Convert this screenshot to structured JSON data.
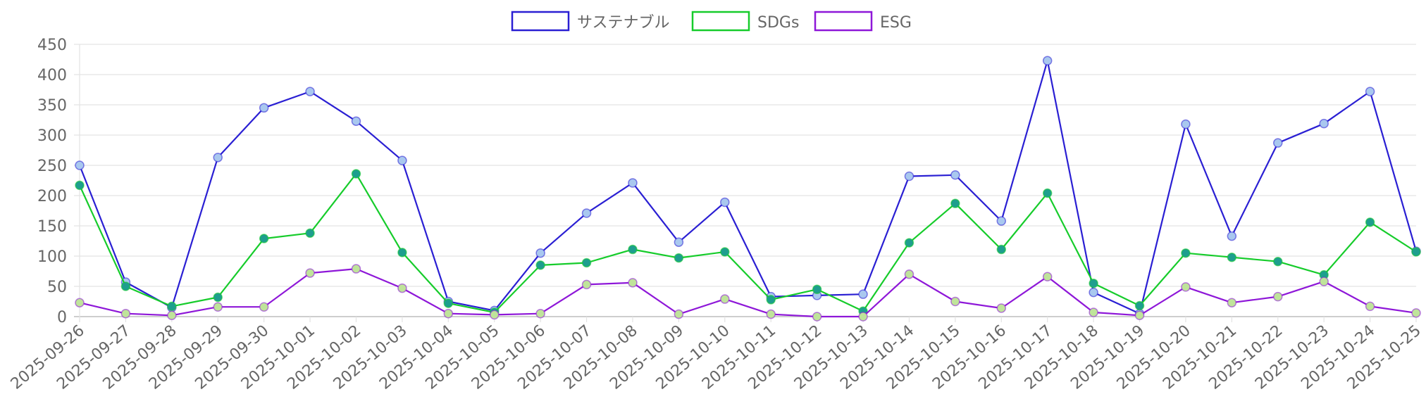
{
  "chart_data": {
    "type": "line",
    "x": [
      "2025-09-26",
      "2025-09-27",
      "2025-09-28",
      "2025-09-29",
      "2025-09-30",
      "2025-10-01",
      "2025-10-02",
      "2025-10-03",
      "2025-10-04",
      "2025-10-05",
      "2025-10-06",
      "2025-10-07",
      "2025-10-08",
      "2025-10-09",
      "2025-10-10",
      "2025-10-11",
      "2025-10-12",
      "2025-10-13",
      "2025-10-14",
      "2025-10-15",
      "2025-10-16",
      "2025-10-17",
      "2025-10-18",
      "2025-10-19",
      "2025-10-20",
      "2025-10-21",
      "2025-10-22",
      "2025-10-23",
      "2025-10-24",
      "2025-10-25"
    ],
    "series": [
      {
        "name": "サステナブル",
        "color": "#2a1fd3",
        "point_color": "#a9c8ef",
        "values": [
          250,
          57,
          15,
          263,
          345,
          372,
          323,
          258,
          25,
          10,
          105,
          171,
          221,
          123,
          189,
          33,
          35,
          37,
          232,
          234,
          158,
          423,
          40,
          5,
          318,
          133,
          287,
          319,
          372,
          108
        ]
      },
      {
        "name": "SDGs",
        "color": "#16cc2b",
        "point_color": "#1e9e8e",
        "values": [
          217,
          50,
          17,
          32,
          129,
          138,
          236,
          106,
          22,
          7,
          85,
          89,
          111,
          97,
          107,
          28,
          45,
          9,
          122,
          187,
          111,
          204,
          55,
          18,
          105,
          98,
          91,
          69,
          156,
          107
        ]
      },
      {
        "name": "ESG",
        "color": "#8e17d8",
        "point_color": "#bfe49a",
        "values": [
          23,
          5,
          2,
          16,
          16,
          72,
          79,
          47,
          5,
          3,
          5,
          53,
          56,
          4,
          29,
          4,
          0,
          0,
          70,
          25,
          14,
          66,
          7,
          2,
          49,
          23,
          33,
          58,
          17,
          6
        ]
      }
    ],
    "ylim": [
      0,
      450
    ],
    "yticks": [
      0,
      50,
      100,
      150,
      200,
      250,
      300,
      350,
      400,
      450
    ],
    "grid": true,
    "legend_position": "top-center"
  }
}
